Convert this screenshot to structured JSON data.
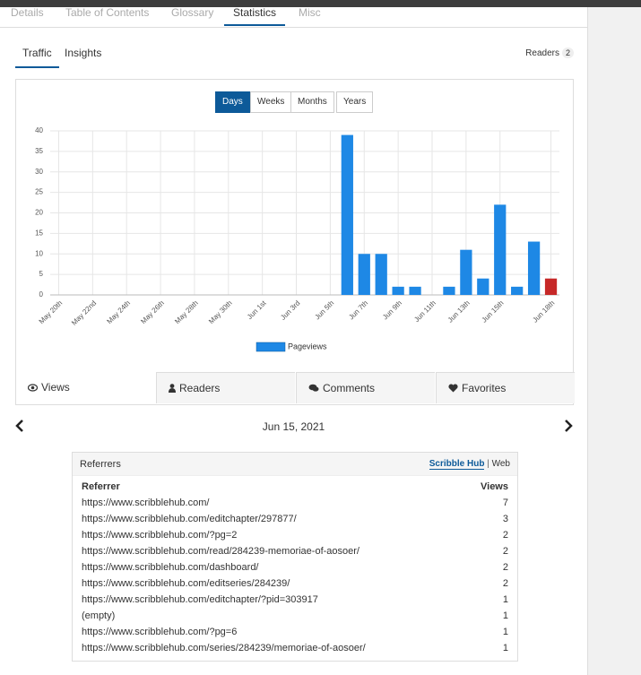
{
  "tabs": [
    {
      "label": "Details"
    },
    {
      "label": "Table of Contents"
    },
    {
      "label": "Glossary"
    },
    {
      "label": "Statistics",
      "active": true
    },
    {
      "label": "Misc"
    }
  ],
  "subtabs": [
    {
      "label": "Traffic",
      "active": true
    },
    {
      "label": "Insights"
    }
  ],
  "readers": {
    "label": "Readers",
    "count": 2
  },
  "range_buttons": [
    {
      "label": "Days",
      "active": true
    },
    {
      "label": "Weeks"
    },
    {
      "label": "Months"
    },
    {
      "label": "Years"
    }
  ],
  "chart_data": {
    "type": "bar",
    "categories": [
      "May 20th",
      null,
      "May 22nd",
      null,
      "May 24th",
      null,
      "May 26th",
      null,
      "May 28th",
      null,
      "May 30th",
      null,
      "Jun 1st",
      null,
      "Jun 3rd",
      null,
      "Jun 5th",
      null,
      "Jun 7th",
      null,
      "Jun 9th",
      null,
      "Jun 11th",
      null,
      "Jun 13th",
      null,
      "Jun 15th",
      null,
      null,
      "Jun 18th"
    ],
    "series": [
      {
        "name": "Pageviews",
        "color": "#1e88e5",
        "colors": [
          "#1e88e5",
          "#1e88e5",
          "#1e88e5",
          "#1e88e5",
          "#1e88e5",
          "#1e88e5",
          "#1e88e5",
          "#1e88e5",
          "#1e88e5",
          "#1e88e5",
          "#1e88e5",
          "#1e88e5",
          "#1e88e5",
          "#1e88e5",
          "#1e88e5",
          "#1e88e5",
          "#1e88e5",
          "#1e88e5",
          "#1e88e5",
          "#1e88e5",
          "#1e88e5",
          "#1e88e5",
          "#1e88e5",
          "#1e88e5",
          "#1e88e5",
          "#1e88e5",
          "#1e88e5",
          "#1e88e5",
          "#1e88e5",
          "#c62828"
        ],
        "values": [
          0,
          0,
          0,
          0,
          0,
          0,
          0,
          0,
          0,
          0,
          0,
          0,
          0,
          0,
          0,
          0,
          0,
          39,
          10,
          10,
          2,
          2,
          0,
          2,
          11,
          4,
          22,
          2,
          13,
          4
        ]
      }
    ],
    "ylim": [
      0,
      40
    ],
    "yticks": [
      0,
      5,
      10,
      15,
      20,
      25,
      30,
      35,
      40
    ],
    "grid": true,
    "legend": "bottom"
  },
  "metric_tabs": [
    {
      "label": "Views",
      "active": true
    },
    {
      "label": "Readers"
    },
    {
      "label": "Comments"
    },
    {
      "label": "Favorites"
    }
  ],
  "date_nav": {
    "date": "Jun 15, 2021"
  },
  "referrers": {
    "title": "Referrers",
    "sources": [
      {
        "label": "Scribble Hub",
        "active": true
      },
      {
        "label": "Web"
      }
    ],
    "separator": "|",
    "columns": [
      "Referrer",
      "Views"
    ],
    "rows": [
      [
        "https://www.scribblehub.com/",
        7
      ],
      [
        "https://www.scribblehub.com/editchapter/297877/",
        3
      ],
      [
        "https://www.scribblehub.com/?pg=2",
        2
      ],
      [
        "https://www.scribblehub.com/read/284239-memoriae-of-aosoer/",
        2
      ],
      [
        "https://www.scribblehub.com/dashboard/",
        2
      ],
      [
        "https://www.scribblehub.com/editseries/284239/",
        2
      ],
      [
        "https://www.scribblehub.com/editchapter/?pid=303917",
        1
      ],
      [
        "(empty)",
        1
      ],
      [
        "https://www.scribblehub.com/?pg=6",
        1
      ],
      [
        "https://www.scribblehub.com/series/284239/memoriae-of-aosoer/",
        1
      ]
    ]
  }
}
